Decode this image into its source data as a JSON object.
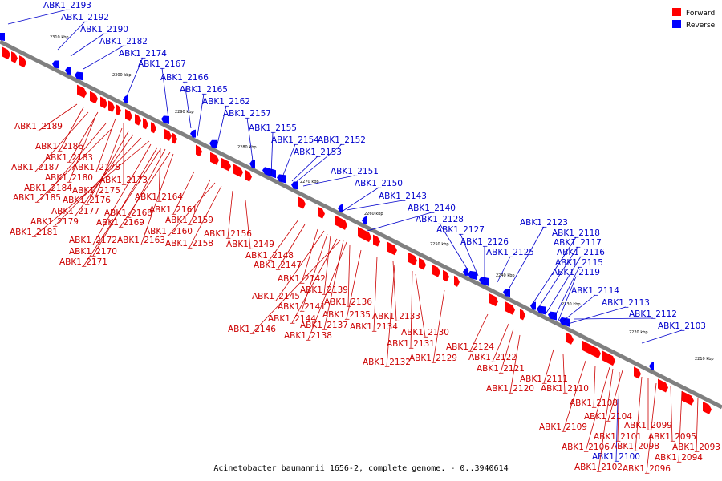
{
  "caption": "Acinetobacter baumannii 1656-2, complete genome. - 0..3940614",
  "legend": [
    {
      "label": "Forward",
      "color": "#ff0000"
    },
    {
      "label": "Reverse",
      "color": "#0000ff"
    }
  ],
  "colors": {
    "forward": "#ff0000",
    "reverse": "#0000ff",
    "backbone": "#808080",
    "forward_label": "#cc0000",
    "reverse_label": "#0000cc"
  },
  "ticks": [
    "2310 kbp",
    "2300 kbp",
    "2290 kbp",
    "2280 kbp",
    "2270 kbp",
    "2260 kbp",
    "2250 kbp",
    "2240 kbp",
    "2230 kbp",
    "2220 kbp",
    "2210 kbp"
  ],
  "reverse_labels": [
    "ABK1_2193",
    "ABK1_2192",
    "ABK1_2190",
    "ABK1_2182",
    "ABK1_2174",
    "ABK1_2167",
    "ABK1_2166",
    "ABK1_2165",
    "ABK1_2162",
    "ABK1_2157",
    "ABK1_2155",
    "ABK1_2154",
    "ABK1_2152",
    "ABK1_2153",
    "ABK1_2151",
    "ABK1_2150",
    "ABK1_2143",
    "ABK1_2140",
    "ABK1_2128",
    "ABK1_2127",
    "ABK1_2126",
    "ABK1_2125",
    "ABK1_2123",
    "ABK1_2118",
    "ABK1_2117",
    "ABK1_2116",
    "ABK1_2115",
    "ABK1_2119",
    "ABK1_2114",
    "ABK1_2113",
    "ABK1_2112",
    "ABK1_2103",
    "ABK1_2100"
  ],
  "forward_labels": [
    "ABK1_2189",
    "ABK1_2186",
    "ABK1_2183",
    "ABK1_2187",
    "ABK1_2178",
    "ABK1_2180",
    "ABK1_2173",
    "ABK1_2184",
    "ABK1_2175",
    "ABK1_2185",
    "ABK1_2176",
    "ABK1_2164",
    "ABK1_2177",
    "ABK1_2168",
    "ABK1_2161",
    "ABK1_2179",
    "ABK1_2169",
    "ABK1_2159",
    "ABK1_2181",
    "ABK1_2160",
    "ABK1_2156",
    "ABK1_2172",
    "ABK1_2163",
    "ABK1_2158",
    "ABK1_2149",
    "ABK1_2170",
    "ABK1_2148",
    "ABK1_2171",
    "ABK1_2147",
    "ABK1_2142",
    "ABK1_2139",
    "ABK1_2145",
    "ABK1_2136",
    "ABK1_2141",
    "ABK1_2135",
    "ABK1_2133",
    "ABK1_2144",
    "ABK1_2137",
    "ABK1_2134",
    "ABK1_2146",
    "ABK1_2130",
    "ABK1_2138",
    "ABK1_2131",
    "ABK1_2124",
    "ABK1_2122",
    "ABK1_2129",
    "ABK1_2132",
    "ABK1_2121",
    "ABK1_2111",
    "ABK1_2120",
    "ABK1_2110",
    "ABK1_2108",
    "ABK1_2104",
    "ABK1_2109",
    "ABK1_2099",
    "ABK1_2101",
    "ABK1_2095",
    "ABK1_2106",
    "ABK1_2098",
    "ABK1_2093",
    "ABK1_2094",
    "ABK1_2102",
    "ABK1_2096"
  ]
}
